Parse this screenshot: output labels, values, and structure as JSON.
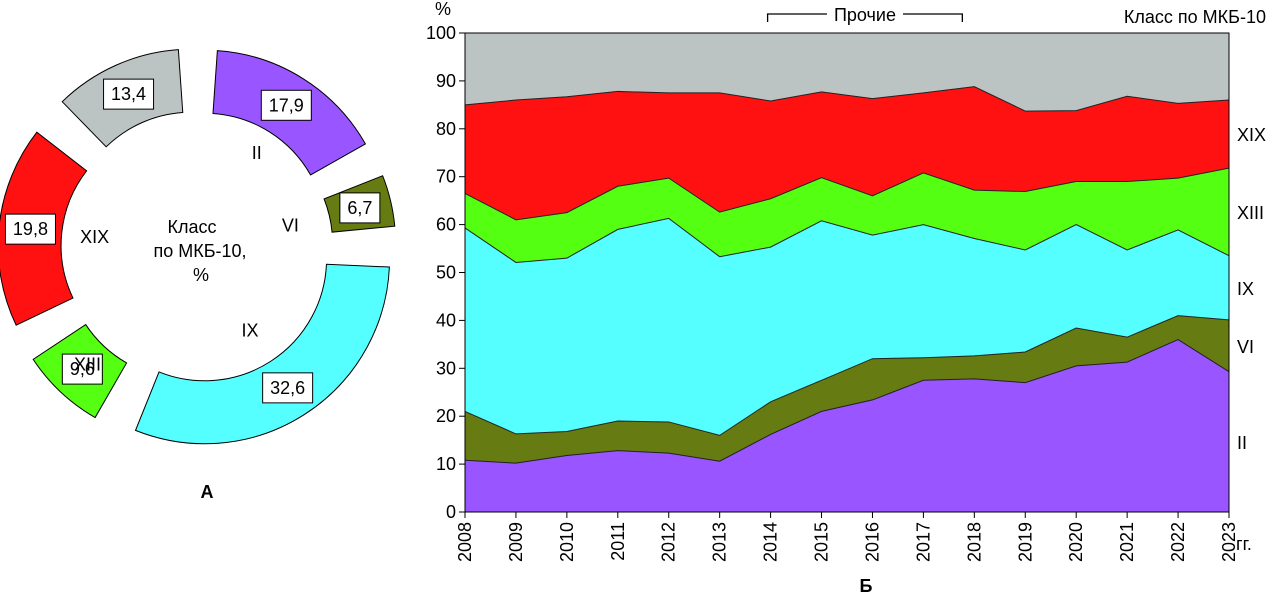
{
  "panel_a": {
    "label": "А",
    "center_title": [
      "Класс",
      "по МКБ-10,",
      "%"
    ]
  },
  "panel_b": {
    "label": "Б",
    "y_unit": "%",
    "x_unit": "гг.",
    "legend_title": "Класс по МКБ-10",
    "bracket_label": "Прочие"
  },
  "chart_data": [
    {
      "type": "pie",
      "variant": "exploded-donut",
      "title": "Класс по МКБ-10, %",
      "slices": [
        {
          "name": "II",
          "value": 17.9,
          "value_text": "17,9",
          "color": "#9955ff"
        },
        {
          "name": "VI",
          "value": 6.7,
          "value_text": "6,7",
          "color": "#667b11"
        },
        {
          "name": "IX",
          "value": 32.6,
          "value_text": "32,6",
          "color": "#55ffff"
        },
        {
          "name": "XIII",
          "value": 9.6,
          "value_text": "9,6",
          "color": "#55ff11"
        },
        {
          "name": "XIX",
          "value": 19.8,
          "value_text": "19,8",
          "color": "#ff1111"
        },
        {
          "name": "",
          "value": 13.4,
          "value_text": "13,4",
          "color": "#bcc3c3"
        }
      ]
    },
    {
      "type": "area",
      "stacked": true,
      "x": [
        2008,
        2009,
        2010,
        2011,
        2012,
        2013,
        2014,
        2015,
        2016,
        2017,
        2018,
        2019,
        2020,
        2021,
        2022,
        2023
      ],
      "ylim": [
        0,
        100
      ],
      "yticks": [
        0,
        10,
        20,
        30,
        40,
        50,
        60,
        70,
        80,
        90,
        100
      ],
      "bracket_years": [
        2014,
        2018
      ],
      "series": [
        {
          "name": "II",
          "color": "#9955ff",
          "values": [
            10.8,
            10.2,
            11.8,
            12.8,
            12.3,
            10.6,
            16.2,
            21.0,
            23.4,
            27.5,
            27.8,
            27.0,
            30.5,
            31.3,
            36.0,
            29.3
          ]
        },
        {
          "name": "VI",
          "color": "#667b11",
          "values": [
            10.2,
            6.1,
            5.0,
            6.2,
            6.5,
            5.4,
            6.8,
            6.5,
            8.6,
            4.7,
            4.8,
            6.4,
            7.9,
            5.2,
            5.0,
            10.8
          ]
        },
        {
          "name": "IX",
          "color": "#55ffff",
          "values": [
            38.3,
            35.8,
            36.2,
            40.0,
            42.5,
            37.3,
            32.3,
            33.3,
            25.8,
            27.8,
            24.5,
            21.3,
            21.6,
            18.2,
            17.9,
            13.4
          ]
        },
        {
          "name": "XIII",
          "color": "#55ff11",
          "values": [
            7.2,
            8.9,
            9.5,
            9.0,
            8.4,
            9.3,
            10.1,
            9.0,
            8.2,
            10.8,
            10.1,
            12.2,
            9.0,
            14.3,
            10.8,
            18.3
          ]
        },
        {
          "name": "XIX",
          "color": "#ff1111",
          "values": [
            18.5,
            25.0,
            24.2,
            19.8,
            17.8,
            24.9,
            20.4,
            17.9,
            20.3,
            16.7,
            21.6,
            16.8,
            14.8,
            17.8,
            15.6,
            14.2
          ]
        },
        {
          "name": "",
          "color": "#bcc3c3",
          "values": [
            15.0,
            14.0,
            13.3,
            12.2,
            12.5,
            12.5,
            14.2,
            12.3,
            13.7,
            12.5,
            11.2,
            16.3,
            16.2,
            13.2,
            14.7,
            14.0
          ]
        }
      ]
    }
  ]
}
